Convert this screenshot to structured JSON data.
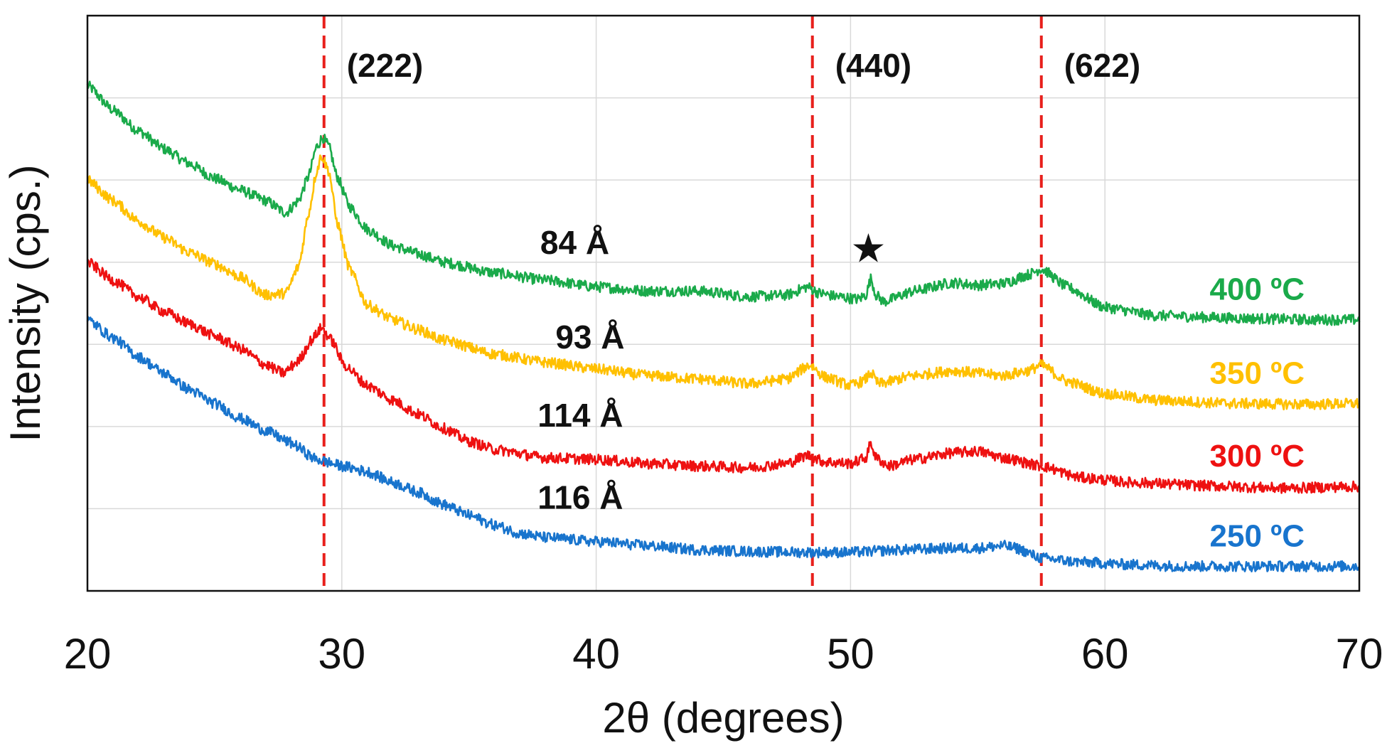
{
  "chart_data": {
    "type": "line",
    "title": "",
    "xlabel": "2θ (degrees)",
    "ylabel": "Intensity (cps.)",
    "xlim": [
      20,
      70
    ],
    "ylim": [
      0,
      7
    ],
    "x_ticks": [
      "20",
      "30",
      "40",
      "50",
      "60",
      "70"
    ],
    "x_tick_values": [
      20,
      30,
      40,
      50,
      60,
      70
    ],
    "y_grid": [
      1,
      2,
      3,
      4,
      5,
      6
    ],
    "x_grid": [
      30,
      40,
      50,
      60
    ],
    "grid": true,
    "y_tick_labels_shown": false,
    "reference_lines": [
      {
        "x": 29.3,
        "label": "(222)",
        "color": "#e8201c"
      },
      {
        "x": 48.5,
        "label": "(440)",
        "color": "#e8201c"
      },
      {
        "x": 57.5,
        "label": "(622)",
        "color": "#e8201c"
      }
    ],
    "star_marker": {
      "symbol": "★",
      "x": 50.7,
      "y": 4.0
    },
    "series": [
      {
        "name": "400 °C",
        "label": "400 ºC",
        "color": "#1aaa4a",
        "size_label": "84 Å",
        "size_label_pos": [
          37.8,
          4.1
        ],
        "points": [
          [
            20,
            6.15
          ],
          [
            21,
            5.85
          ],
          [
            22,
            5.6
          ],
          [
            23,
            5.38
          ],
          [
            24,
            5.2
          ],
          [
            25,
            5.02
          ],
          [
            26,
            4.88
          ],
          [
            27,
            4.75
          ],
          [
            27.8,
            4.6
          ],
          [
            28.3,
            4.75
          ],
          [
            28.7,
            5.05
          ],
          [
            29.0,
            5.4
          ],
          [
            29.25,
            5.52
          ],
          [
            29.5,
            5.4
          ],
          [
            29.8,
            5.05
          ],
          [
            30.3,
            4.68
          ],
          [
            31,
            4.4
          ],
          [
            32,
            4.2
          ],
          [
            33,
            4.1
          ],
          [
            34,
            4.0
          ],
          [
            36,
            3.87
          ],
          [
            38,
            3.78
          ],
          [
            40,
            3.7
          ],
          [
            42,
            3.65
          ],
          [
            44,
            3.65
          ],
          [
            46,
            3.58
          ],
          [
            47.5,
            3.6
          ],
          [
            48.3,
            3.7
          ],
          [
            48.8,
            3.62
          ],
          [
            49.5,
            3.58
          ],
          [
            50.3,
            3.55
          ],
          [
            50.6,
            3.6
          ],
          [
            50.8,
            3.8
          ],
          [
            51.0,
            3.6
          ],
          [
            51.3,
            3.52
          ],
          [
            52.5,
            3.65
          ],
          [
            54,
            3.75
          ],
          [
            55,
            3.72
          ],
          [
            56,
            3.74
          ],
          [
            57,
            3.85
          ],
          [
            57.5,
            3.92
          ],
          [
            58.5,
            3.7
          ],
          [
            60,
            3.45
          ],
          [
            62,
            3.35
          ],
          [
            65,
            3.32
          ],
          [
            68,
            3.3
          ],
          [
            70,
            3.3
          ]
        ]
      },
      {
        "name": "350 °C",
        "label": "350 ºC",
        "color": "#ffc000",
        "size_label": "93 Å",
        "size_label_pos": [
          38.4,
          2.95
        ],
        "points": [
          [
            20,
            5.0
          ],
          [
            21,
            4.75
          ],
          [
            22,
            4.5
          ],
          [
            23,
            4.3
          ],
          [
            24,
            4.12
          ],
          [
            25,
            3.98
          ],
          [
            26,
            3.82
          ],
          [
            27,
            3.6
          ],
          [
            27.8,
            3.62
          ],
          [
            28.3,
            3.95
          ],
          [
            28.7,
            4.6
          ],
          [
            29.0,
            5.1
          ],
          [
            29.2,
            5.3
          ],
          [
            29.5,
            5.1
          ],
          [
            29.8,
            4.5
          ],
          [
            30.3,
            3.92
          ],
          [
            31,
            3.48
          ],
          [
            32,
            3.3
          ],
          [
            33,
            3.18
          ],
          [
            34,
            3.05
          ],
          [
            36,
            2.88
          ],
          [
            38,
            2.78
          ],
          [
            40,
            2.7
          ],
          [
            42,
            2.62
          ],
          [
            44,
            2.58
          ],
          [
            46,
            2.52
          ],
          [
            47.5,
            2.58
          ],
          [
            48.4,
            2.75
          ],
          [
            49,
            2.6
          ],
          [
            50,
            2.5
          ],
          [
            50.5,
            2.55
          ],
          [
            50.8,
            2.65
          ],
          [
            51.1,
            2.52
          ],
          [
            52.5,
            2.62
          ],
          [
            54,
            2.68
          ],
          [
            56,
            2.62
          ],
          [
            57,
            2.68
          ],
          [
            57.5,
            2.75
          ],
          [
            58.5,
            2.55
          ],
          [
            60,
            2.4
          ],
          [
            62,
            2.32
          ],
          [
            65,
            2.28
          ],
          [
            68,
            2.27
          ],
          [
            70,
            2.28
          ]
        ]
      },
      {
        "name": "300 °C",
        "label": "300 ºC",
        "color": "#ee1111",
        "size_label": "114 Å",
        "size_label_pos": [
          37.7,
          2.0
        ],
        "points": [
          [
            20,
            4.0
          ],
          [
            21,
            3.78
          ],
          [
            22,
            3.58
          ],
          [
            23,
            3.4
          ],
          [
            24,
            3.25
          ],
          [
            25,
            3.1
          ],
          [
            26,
            2.95
          ],
          [
            27,
            2.75
          ],
          [
            27.7,
            2.65
          ],
          [
            28.3,
            2.8
          ],
          [
            28.8,
            3.05
          ],
          [
            29.2,
            3.2
          ],
          [
            29.6,
            3.05
          ],
          [
            30.1,
            2.75
          ],
          [
            31,
            2.5
          ],
          [
            32,
            2.32
          ],
          [
            33,
            2.15
          ],
          [
            34,
            1.98
          ],
          [
            35,
            1.82
          ],
          [
            36,
            1.72
          ],
          [
            38,
            1.62
          ],
          [
            40,
            1.6
          ],
          [
            42,
            1.55
          ],
          [
            44,
            1.52
          ],
          [
            46,
            1.5
          ],
          [
            47.5,
            1.55
          ],
          [
            48.3,
            1.65
          ],
          [
            49,
            1.57
          ],
          [
            50,
            1.55
          ],
          [
            50.6,
            1.62
          ],
          [
            50.8,
            1.8
          ],
          [
            51.0,
            1.62
          ],
          [
            51.5,
            1.52
          ],
          [
            52.5,
            1.6
          ],
          [
            54,
            1.68
          ],
          [
            55,
            1.7
          ],
          [
            56,
            1.62
          ],
          [
            57.5,
            1.52
          ],
          [
            59,
            1.38
          ],
          [
            61,
            1.32
          ],
          [
            64,
            1.28
          ],
          [
            67,
            1.25
          ],
          [
            70,
            1.27
          ]
        ]
      },
      {
        "name": "250 °C",
        "label": "250 ºC",
        "color": "#1874cd",
        "size_label": "116 Å",
        "size_label_pos": [
          37.7,
          1.0
        ],
        "points": [
          [
            20,
            3.3
          ],
          [
            21,
            3.08
          ],
          [
            22,
            2.85
          ],
          [
            23,
            2.65
          ],
          [
            24,
            2.45
          ],
          [
            25,
            2.28
          ],
          [
            26,
            2.1
          ],
          [
            27,
            1.95
          ],
          [
            28,
            1.8
          ],
          [
            29,
            1.6
          ],
          [
            30,
            1.52
          ],
          [
            31,
            1.45
          ],
          [
            32,
            1.32
          ],
          [
            33,
            1.2
          ],
          [
            34,
            1.05
          ],
          [
            35,
            0.92
          ],
          [
            36,
            0.8
          ],
          [
            37,
            0.7
          ],
          [
            38,
            0.65
          ],
          [
            40,
            0.6
          ],
          [
            42,
            0.55
          ],
          [
            44,
            0.5
          ],
          [
            46,
            0.48
          ],
          [
            48,
            0.47
          ],
          [
            50,
            0.47
          ],
          [
            52,
            0.5
          ],
          [
            54,
            0.52
          ],
          [
            55,
            0.52
          ],
          [
            56,
            0.55
          ],
          [
            56.5,
            0.52
          ],
          [
            57.5,
            0.4
          ],
          [
            59,
            0.35
          ],
          [
            61,
            0.32
          ],
          [
            63,
            0.3
          ],
          [
            66,
            0.3
          ],
          [
            70,
            0.3
          ]
        ]
      }
    ]
  }
}
